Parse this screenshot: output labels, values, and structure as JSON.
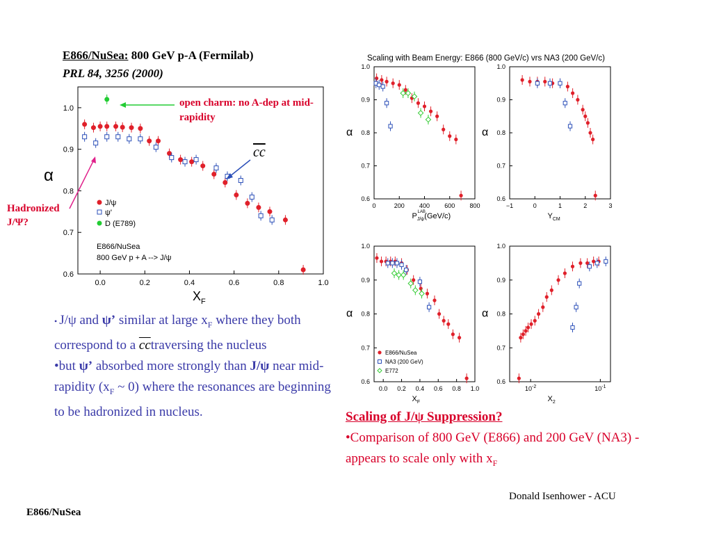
{
  "slide": {
    "title_experiment": "E866/NuSea:",
    "title_rest": " 800 GeV p-A (Fermilab)",
    "citation": "PRL 84, 3256 (2000)",
    "footer_author": "Donald Isenhower - ACU",
    "footer_label": "E866/NuSea"
  },
  "annotations": {
    "open_charm": "open charm: no A-dep at mid-rapidity",
    "cc_label": "cc",
    "hadronized_1": "Hadronized",
    "hadronized_2": "J/Ψ?"
  },
  "bullets": {
    "b1_jpsi": "J/ψ",
    "b1_and": " and ",
    "b1_psip": "ψ’",
    "b1_text": " similar at large x",
    "b1_sub": "F",
    "b1_text2": " where they both correspond to a ",
    "b1_cc": "cc",
    "b1_text3": "traversing the nucleus",
    "b2_but": "•but ",
    "b2_psip": "ψ’",
    "b2_text": " absorbed more strongly than ",
    "b2_jpsi": "J/ψ",
    "b2_text2": " near mid-rapidity (x",
    "b2_sub": "F",
    "b2_text3": " ~ 0) where the resonances are beginning to be hadronized in nucleus."
  },
  "right_section": {
    "heading": "Scaling of J/ψ Suppression?",
    "line": "•Comparison of 800 GeV (E866) and 200 GeV (NA3) -appears to scale only with x",
    "line_sub": "F"
  },
  "colors": {
    "e866": "#e0202a",
    "psi_prime": "#2b4fb8",
    "e789": "#22cc33",
    "e772": "#33cc33",
    "text_blue": "#3a3aa8",
    "text_red": "#d8002a"
  },
  "chart_data": [
    {
      "type": "scatter",
      "id": "main",
      "xlabel": "X",
      "xlabel_sub": "F",
      "ylabel": "α",
      "xlim": [
        -0.1,
        1.0
      ],
      "ylim": [
        0.6,
        1.05
      ],
      "xticks": [
        "0.0",
        "0.2",
        "0.4",
        "0.6",
        "0.8",
        "1.0"
      ],
      "yticks": [
        "0.6",
        "0.7",
        "0.8",
        "0.9",
        "1.0"
      ],
      "legend": [
        "J/ψ",
        "ψ'",
        "D (E789)"
      ],
      "legend_note_1": "E866/NuSea",
      "legend_note_2": "800 GeV p + A --> J/ψ",
      "series": [
        {
          "name": "J/ψ",
          "x": [
            -0.07,
            -0.03,
            0.0,
            0.03,
            0.07,
            0.1,
            0.14,
            0.18,
            0.22,
            0.26,
            0.31,
            0.36,
            0.41,
            0.46,
            0.51,
            0.56,
            0.61,
            0.66,
            0.71,
            0.76,
            0.83,
            0.91
          ],
          "y": [
            0.96,
            0.952,
            0.955,
            0.955,
            0.955,
            0.953,
            0.952,
            0.95,
            0.92,
            0.92,
            0.89,
            0.875,
            0.87,
            0.86,
            0.84,
            0.82,
            0.79,
            0.77,
            0.76,
            0.75,
            0.73,
            0.61
          ]
        },
        {
          "name": "ψ'",
          "x": [
            -0.07,
            -0.02,
            0.03,
            0.08,
            0.13,
            0.18,
            0.25,
            0.32,
            0.38,
            0.43,
            0.52,
            0.57,
            0.63,
            0.68,
            0.72,
            0.77
          ],
          "y": [
            0.93,
            0.915,
            0.93,
            0.93,
            0.925,
            0.925,
            0.905,
            0.88,
            0.87,
            0.875,
            0.855,
            0.835,
            0.825,
            0.785,
            0.74,
            0.73
          ]
        },
        {
          "name": "D (E789)",
          "x": [
            0.03
          ],
          "y": [
            1.02
          ]
        }
      ]
    },
    {
      "type": "scatter",
      "id": "plab",
      "title": "Scaling with Beam Energy: E866 (800 GeV/c) vrs NA3 (200 GeV/c)",
      "xlabel": "P",
      "xlabel_sup": "LAB",
      "xlabel_sub": "J/ψ",
      "xlabel_unit": "(GeV/c)",
      "ylabel": "α",
      "xlim": [
        0,
        800
      ],
      "ylim": [
        0.6,
        1.0
      ],
      "xticks": [
        "0",
        "200",
        "400",
        "600",
        "800"
      ],
      "yticks": [
        "0.6",
        "0.7",
        "0.8",
        "0.9",
        "1.0"
      ],
      "series": [
        {
          "name": "E866/NuSea",
          "x": [
            20,
            60,
            100,
            150,
            200,
            250,
            300,
            350,
            400,
            450,
            500,
            550,
            600,
            650,
            690
          ],
          "y": [
            0.965,
            0.96,
            0.955,
            0.95,
            0.945,
            0.93,
            0.905,
            0.89,
            0.88,
            0.865,
            0.85,
            0.81,
            0.79,
            0.78,
            0.61
          ]
        },
        {
          "name": "NA3 (200 GeV)",
          "x": [
            15,
            40,
            70,
            100,
            130
          ],
          "y": [
            0.95,
            0.945,
            0.94,
            0.89,
            0.82
          ]
        },
        {
          "name": "E772",
          "x": [
            230,
            270,
            320,
            370,
            430
          ],
          "y": [
            0.92,
            0.92,
            0.91,
            0.86,
            0.84
          ]
        }
      ]
    },
    {
      "type": "scatter",
      "id": "ycm",
      "xlabel": "Y",
      "xlabel_sub": "CM",
      "ylabel": "α",
      "xlim": [
        -1,
        3
      ],
      "ylim": [
        0.6,
        1.0
      ],
      "xticks": [
        "−1",
        "0",
        "1",
        "2",
        "3"
      ],
      "yticks": [
        "0.6",
        "0.7",
        "0.8",
        "0.9",
        "1.0"
      ],
      "series": [
        {
          "name": "E866/NuSea",
          "x": [
            -0.5,
            -0.2,
            0.1,
            0.4,
            0.7,
            1.0,
            1.3,
            1.5,
            1.7,
            1.9,
            2.0,
            2.1,
            2.2,
            2.3,
            2.4
          ],
          "y": [
            0.96,
            0.955,
            0.955,
            0.955,
            0.95,
            0.95,
            0.94,
            0.92,
            0.9,
            0.87,
            0.85,
            0.83,
            0.8,
            0.78,
            0.61
          ]
        },
        {
          "name": "NA3 (200 GeV)",
          "x": [
            0.1,
            0.6,
            1.0,
            1.2,
            1.4
          ],
          "y": [
            0.95,
            0.95,
            0.95,
            0.89,
            0.82
          ]
        }
      ]
    },
    {
      "type": "scatter",
      "id": "xf",
      "xlabel": "X",
      "xlabel_sub": "F",
      "ylabel": "α",
      "xlim": [
        -0.1,
        1.0
      ],
      "ylim": [
        0.6,
        1.0
      ],
      "xticks": [
        "0.0",
        "0.2",
        "0.4",
        "0.6",
        "0.8",
        "1.0"
      ],
      "yticks": [
        "0.6",
        "0.7",
        "0.8",
        "0.9",
        "1.0"
      ],
      "legend": [
        "E866/NuSea",
        "NA3 (200 GeV)",
        "E772"
      ],
      "series": [
        {
          "name": "E866/NuSea",
          "x": [
            -0.07,
            -0.02,
            0.03,
            0.08,
            0.13,
            0.2,
            0.26,
            0.33,
            0.41,
            0.48,
            0.56,
            0.61,
            0.66,
            0.71,
            0.76,
            0.83,
            0.91
          ],
          "y": [
            0.965,
            0.955,
            0.955,
            0.955,
            0.955,
            0.95,
            0.93,
            0.9,
            0.875,
            0.86,
            0.84,
            0.8,
            0.78,
            0.77,
            0.74,
            0.73,
            0.61
          ]
        },
        {
          "name": "NA3 (200 GeV)",
          "x": [
            0.05,
            0.1,
            0.15,
            0.2,
            0.25,
            0.4,
            0.5
          ],
          "y": [
            0.95,
            0.95,
            0.95,
            0.945,
            0.93,
            0.895,
            0.82
          ]
        },
        {
          "name": "E772",
          "x": [
            0.12,
            0.17,
            0.22,
            0.3,
            0.35,
            0.42
          ],
          "y": [
            0.92,
            0.915,
            0.915,
            0.89,
            0.87,
            0.86
          ]
        }
      ]
    },
    {
      "type": "scatter",
      "id": "x2",
      "xlabel": "X",
      "xlabel_sub": "2",
      "ylabel": "α",
      "xscale": "log",
      "xlim": [
        0.005,
        0.14
      ],
      "ylim": [
        0.6,
        1.0
      ],
      "xticks": [
        "10",
        "10"
      ],
      "xticks_exp": [
        "-2",
        "-1"
      ],
      "yticks": [
        "0.6",
        "0.7",
        "0.8",
        "0.9",
        "1.0"
      ],
      "series": [
        {
          "name": "E866/NuSea",
          "x": [
            0.0068,
            0.0072,
            0.0078,
            0.0085,
            0.0092,
            0.0102,
            0.0115,
            0.013,
            0.015,
            0.017,
            0.02,
            0.025,
            0.031,
            0.04,
            0.052,
            0.065,
            0.08,
            0.095
          ],
          "y": [
            0.61,
            0.73,
            0.74,
            0.75,
            0.76,
            0.77,
            0.78,
            0.8,
            0.82,
            0.85,
            0.87,
            0.9,
            0.92,
            0.94,
            0.95,
            0.95,
            0.955,
            0.955
          ]
        },
        {
          "name": "NA3 (200 GeV)",
          "x": [
            0.04,
            0.045,
            0.05,
            0.07,
            0.09,
            0.12
          ],
          "y": [
            0.76,
            0.82,
            0.89,
            0.94,
            0.95,
            0.955
          ]
        }
      ]
    }
  ]
}
